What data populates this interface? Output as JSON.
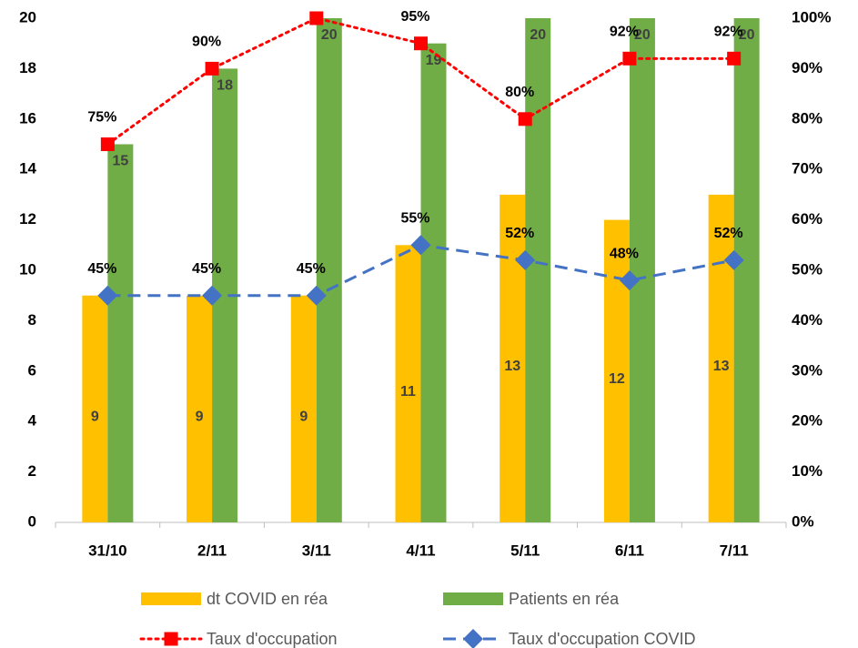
{
  "chart_data": {
    "type": "bar_line",
    "categories": [
      "31/10",
      "2/11",
      "3/11",
      "4/11",
      "5/11",
      "6/11",
      "7/11"
    ],
    "series": [
      {
        "name": "dt COVID en réa",
        "type": "bar",
        "color": "#FFC000",
        "values": [
          9,
          9,
          9,
          11,
          13,
          12,
          13
        ]
      },
      {
        "name": "Patients en réa",
        "type": "bar",
        "color": "#70AD47",
        "values": [
          15,
          18,
          20,
          19,
          20,
          20,
          20
        ]
      },
      {
        "name": "Taux d'occupation",
        "type": "line",
        "axis": "y2",
        "color": "#FF0000",
        "line_style": "dotted",
        "marker": "square",
        "values": [
          75,
          90,
          100,
          95,
          80,
          92,
          92
        ],
        "value_labels": [
          "75%",
          "90%",
          "",
          "95%",
          "80%",
          "92%",
          "92%"
        ]
      },
      {
        "name": "Taux d'occupation COVID",
        "type": "line",
        "axis": "y2",
        "color": "#4472C4",
        "line_style": "dashed",
        "marker": "diamond",
        "values": [
          45,
          45,
          45,
          55,
          52,
          48,
          52
        ],
        "value_labels": [
          "45%",
          "45%",
          "45%",
          "55%",
          "52%",
          "48%",
          "52%"
        ]
      }
    ],
    "ylim": [
      0,
      20
    ],
    "yticks": [
      0,
      2,
      4,
      6,
      8,
      10,
      12,
      14,
      16,
      18,
      20
    ],
    "y2lim": [
      0,
      100
    ],
    "y2ticks": [
      {
        "value": 0,
        "label": "0%"
      },
      {
        "value": 10,
        "label": "10%"
      },
      {
        "value": 20,
        "label": "20%"
      },
      {
        "value": 30,
        "label": "30%"
      },
      {
        "value": 40,
        "label": "40%"
      },
      {
        "value": 50,
        "label": "50%"
      },
      {
        "value": 60,
        "label": "60%"
      },
      {
        "value": 70,
        "label": "70%"
      },
      {
        "value": 80,
        "label": "80%"
      },
      {
        "value": 90,
        "label": "90%"
      },
      {
        "value": 100,
        "label": "100%"
      }
    ],
    "grid": false,
    "legend": "bottom"
  }
}
